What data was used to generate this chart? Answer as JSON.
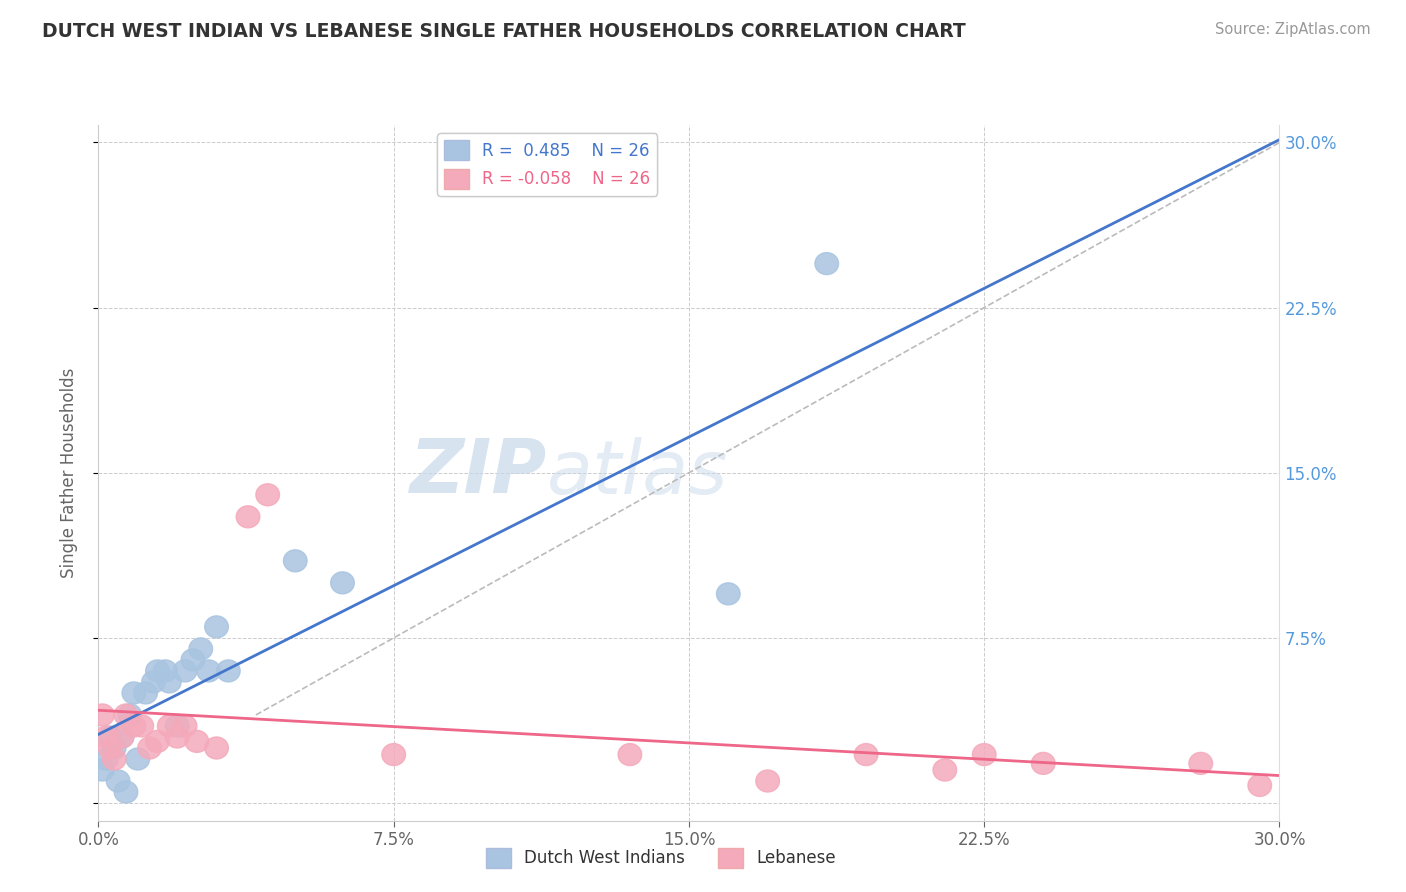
{
  "title": "DUTCH WEST INDIAN VS LEBANESE SINGLE FATHER HOUSEHOLDS CORRELATION CHART",
  "source": "Source: ZipAtlas.com",
  "ylabel": "Single Father Households",
  "xlim": [
    0.0,
    0.3
  ],
  "ylim": [
    -0.008,
    0.308
  ],
  "x_ticks": [
    0.0,
    0.075,
    0.15,
    0.225,
    0.3
  ],
  "x_tick_labels": [
    "0.0%",
    "7.5%",
    "15.0%",
    "22.5%",
    "30.0%"
  ],
  "y_ticks": [
    0.0,
    0.075,
    0.15,
    0.225,
    0.3
  ],
  "y_tick_labels": [
    "",
    "7.5%",
    "15.0%",
    "22.5%",
    "30.0%"
  ],
  "watermark_zip": "ZIP",
  "watermark_atlas": "atlas",
  "blue_R": "0.485",
  "blue_N": "26",
  "pink_R": "-0.058",
  "pink_N": "26",
  "blue_fill": "#A8C4E0",
  "pink_fill": "#F4AABB",
  "blue_line": "#4477CC",
  "pink_line": "#EE6688",
  "gray_line": "#BBBBBB",
  "axis_tick_color": "#5599DD",
  "title_color": "#333333",
  "bg": "#FFFFFF",
  "dutch_x": [
    0.001,
    0.002,
    0.003,
    0.004,
    0.005,
    0.006,
    0.007,
    0.008,
    0.009,
    0.01,
    0.012,
    0.014,
    0.015,
    0.017,
    0.018,
    0.02,
    0.022,
    0.024,
    0.026,
    0.028,
    0.03,
    0.033,
    0.05,
    0.062,
    0.16,
    0.185
  ],
  "dutch_y": [
    0.015,
    0.02,
    0.03,
    0.025,
    0.01,
    0.03,
    0.005,
    0.04,
    0.05,
    0.02,
    0.05,
    0.055,
    0.06,
    0.06,
    0.055,
    0.035,
    0.06,
    0.065,
    0.07,
    0.06,
    0.08,
    0.06,
    0.11,
    0.1,
    0.095,
    0.245
  ],
  "lebanese_x": [
    0.001,
    0.002,
    0.003,
    0.004,
    0.006,
    0.007,
    0.009,
    0.011,
    0.013,
    0.015,
    0.018,
    0.02,
    0.022,
    0.025,
    0.03,
    0.038,
    0.043,
    0.075,
    0.135,
    0.17,
    0.195,
    0.215,
    0.225,
    0.24,
    0.28,
    0.295
  ],
  "lebanese_y": [
    0.04,
    0.03,
    0.025,
    0.02,
    0.03,
    0.04,
    0.035,
    0.035,
    0.025,
    0.028,
    0.035,
    0.03,
    0.035,
    0.028,
    0.025,
    0.13,
    0.14,
    0.022,
    0.022,
    0.01,
    0.022,
    0.015,
    0.022,
    0.018,
    0.018,
    0.008
  ]
}
